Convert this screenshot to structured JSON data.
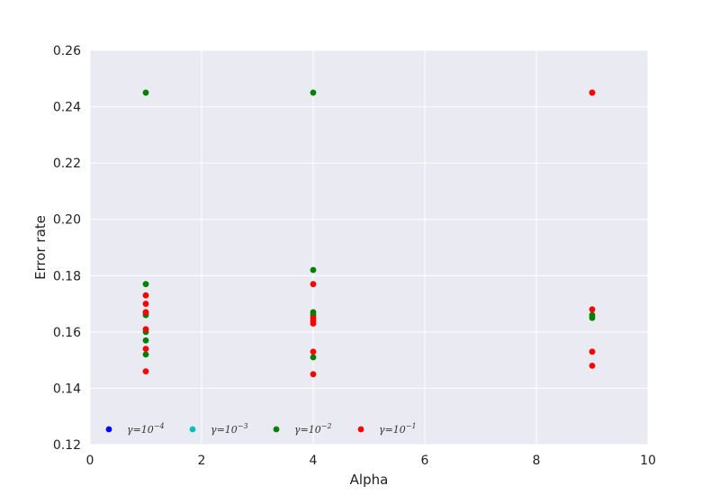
{
  "chart_data": {
    "type": "scatter",
    "title": "",
    "xlabel": "Alpha",
    "ylabel": "Error rate",
    "xlim": [
      0,
      10
    ],
    "ylim": [
      0.12,
      0.26
    ],
    "xticks": [
      0,
      2,
      4,
      6,
      8,
      10
    ],
    "yticks": [
      0.12,
      0.14,
      0.16,
      0.18,
      0.2,
      0.22,
      0.24,
      0.26
    ],
    "xtick_labels": [
      "0",
      "2",
      "4",
      "6",
      "8",
      "10"
    ],
    "ytick_labels": [
      "0.12",
      "0.14",
      "0.16",
      "0.18",
      "0.20",
      "0.22",
      "0.24",
      "0.26"
    ],
    "grid": true,
    "background": "#eaeaf2",
    "legend_position": "bottom-left",
    "series": [
      {
        "name": "γ=10",
        "exponent": "−4",
        "color": "#0000ff",
        "points": []
      },
      {
        "name": "γ=10",
        "exponent": "−3",
        "color": "#00bfbf",
        "points": []
      },
      {
        "name": "γ=10",
        "exponent": "−2",
        "color": "#008000",
        "points": [
          [
            1,
            0.245
          ],
          [
            1,
            0.177
          ],
          [
            1,
            0.167
          ],
          [
            1,
            0.166
          ],
          [
            1,
            0.16
          ],
          [
            1,
            0.157
          ],
          [
            1,
            0.152
          ],
          [
            4,
            0.245
          ],
          [
            4,
            0.182
          ],
          [
            4,
            0.167
          ],
          [
            4,
            0.166
          ],
          [
            4,
            0.151
          ],
          [
            9,
            0.245
          ],
          [
            9,
            0.166
          ],
          [
            9,
            0.165
          ],
          [
            9,
            0.153
          ]
        ]
      },
      {
        "name": "γ=10",
        "exponent": "−1",
        "color": "#ff0000",
        "points": [
          [
            1,
            0.173
          ],
          [
            1,
            0.17
          ],
          [
            1,
            0.167
          ],
          [
            1,
            0.161
          ],
          [
            1,
            0.154
          ],
          [
            1,
            0.146
          ],
          [
            4,
            0.177
          ],
          [
            4,
            0.165
          ],
          [
            4,
            0.164
          ],
          [
            4,
            0.163
          ],
          [
            4,
            0.153
          ],
          [
            4,
            0.145
          ],
          [
            9,
            0.245
          ],
          [
            9,
            0.168
          ],
          [
            9,
            0.153
          ],
          [
            9,
            0.148
          ]
        ]
      }
    ]
  }
}
